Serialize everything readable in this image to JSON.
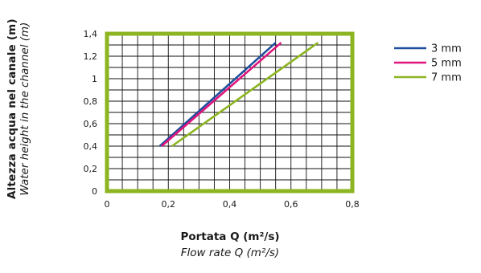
{
  "chart_data": {
    "type": "line",
    "ylabel": "Altezza acqua nel canale (m)",
    "ylabel_en": "Water height in the channel (m)",
    "xlabel": "Portata Q (m²/s)",
    "xlabel_en": "Flow rate Q (m²/s)",
    "xlim": [
      0,
      0.8
    ],
    "ylim": [
      0,
      1.4
    ],
    "xticks": [
      0,
      0.2,
      0.4,
      0.6,
      0.8
    ],
    "xtick_labels": [
      "0",
      "0,2",
      "0,4",
      "0,6",
      "0,8"
    ],
    "yticks": [
      0,
      0.2,
      0.4,
      0.6,
      0.8,
      1.0,
      1.2,
      1.4
    ],
    "ytick_labels": [
      "0",
      "0,2",
      "0,4",
      "0,6",
      "0,8",
      "1",
      "1,2",
      "1,4"
    ],
    "grid": true,
    "legend_position": "right",
    "series": [
      {
        "name": "3 mm",
        "color": "#1f4e9c",
        "x": [
          0.172,
          0.55
        ],
        "y": [
          0.4,
          1.32
        ]
      },
      {
        "name": "5 mm",
        "color": "#e0147c",
        "x": [
          0.178,
          0.568
        ],
        "y": [
          0.4,
          1.32
        ]
      },
      {
        "name": "7 mm",
        "color": "#8cb521",
        "x": [
          0.212,
          0.688
        ],
        "y": [
          0.4,
          1.32
        ]
      }
    ],
    "frame_color": "#8cb521"
  }
}
